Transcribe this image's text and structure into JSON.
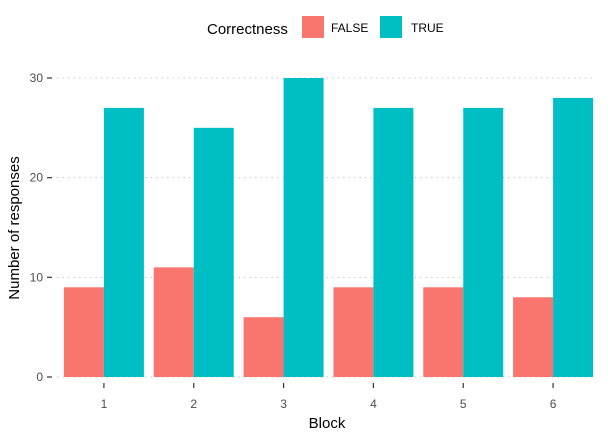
{
  "chart_data": {
    "type": "bar",
    "categories": [
      "1",
      "2",
      "3",
      "4",
      "5",
      "6"
    ],
    "series": [
      {
        "name": "FALSE",
        "color": "#F8766D",
        "values": [
          9,
          11,
          6,
          9,
          9,
          8
        ]
      },
      {
        "name": "TRUE",
        "color": "#00BFC4",
        "values": [
          27,
          25,
          30,
          27,
          27,
          28
        ]
      }
    ],
    "xlabel": "Block",
    "ylabel": "Number of responses",
    "ylim": [
      0,
      30
    ],
    "yticks": [
      0,
      10,
      20,
      30
    ],
    "grid": "horizontal dotted",
    "legend": {
      "title": "Correctness",
      "position": "top"
    }
  }
}
